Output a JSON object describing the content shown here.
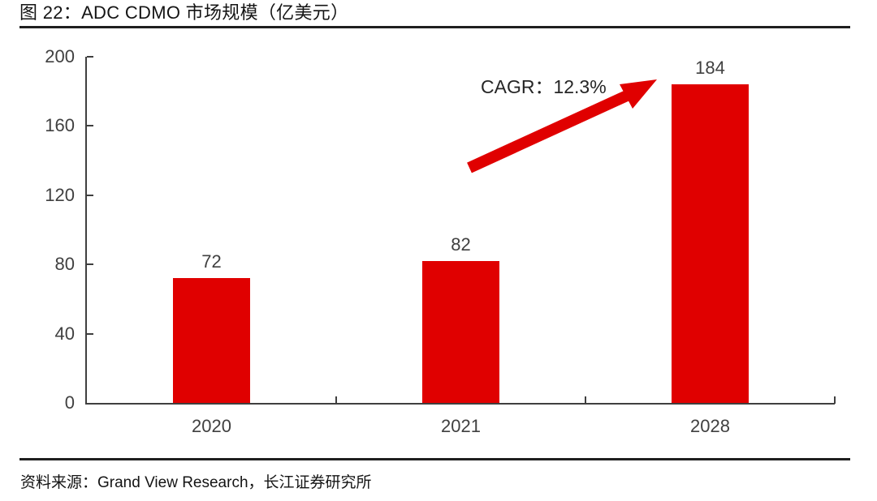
{
  "header": {
    "title": "图 22：ADC CDMO 市场规模（亿美元）"
  },
  "footer": {
    "source": "资料来源：Grand View Research，长江证券研究所"
  },
  "colors": {
    "bar_red": "#E00000",
    "axis_gray": "#3F3F3F",
    "label_gray": "#404040",
    "text_dark": "#141414"
  },
  "chart_data": {
    "type": "bar",
    "title": "ADC CDMO 市场规模（亿美元）",
    "categories": [
      "2020",
      "2021",
      "2028"
    ],
    "values": [
      72,
      82,
      184
    ],
    "xlabel": "",
    "ylabel": "",
    "ylim": [
      0,
      200
    ],
    "yticks": [
      0,
      40,
      80,
      120,
      160,
      200
    ],
    "grid": false,
    "legend": "none",
    "annotation": "CAGR：12.3%",
    "bar_color": "#E00000",
    "arrow_color": "#E00000"
  }
}
